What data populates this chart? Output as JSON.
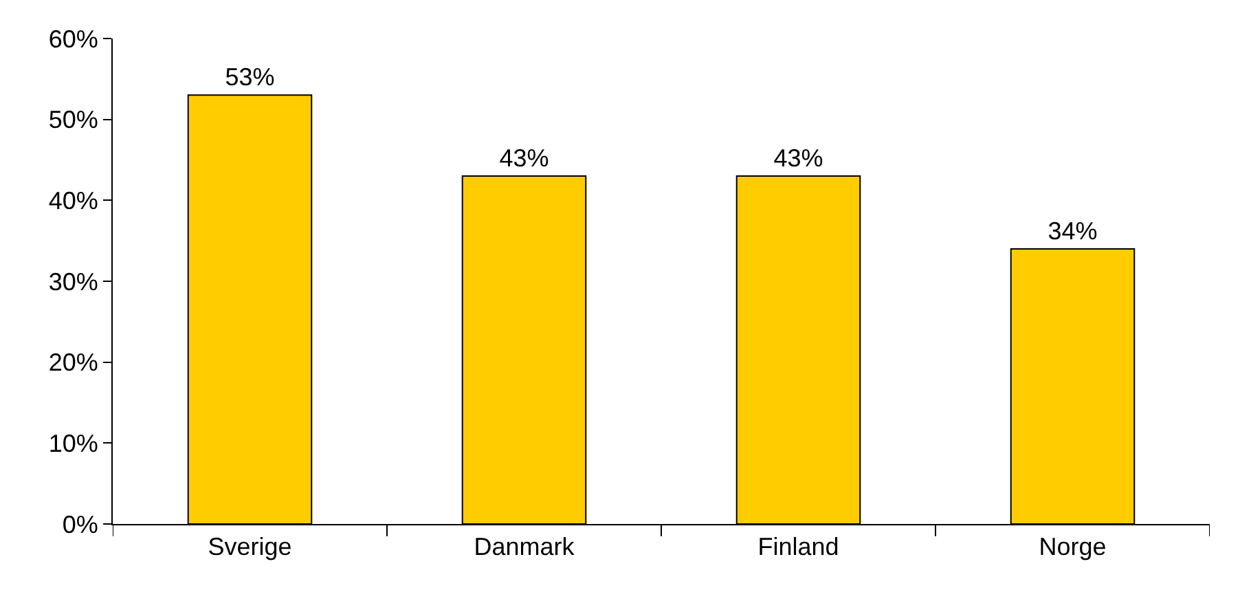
{
  "chart_data": {
    "type": "bar",
    "categories": [
      "Sverige",
      "Danmark",
      "Finland",
      "Norge"
    ],
    "values": [
      53,
      43,
      43,
      34
    ],
    "value_labels": [
      "53%",
      "43%",
      "43%",
      "34%"
    ],
    "color": "#ffcc00",
    "ylim": [
      0,
      60
    ],
    "yticks": [
      {
        "value": 0,
        "label": "0%"
      },
      {
        "value": 10,
        "label": "10%"
      },
      {
        "value": 20,
        "label": "20%"
      },
      {
        "value": 30,
        "label": "30%"
      },
      {
        "value": 40,
        "label": "40%"
      },
      {
        "value": 50,
        "label": "50%"
      },
      {
        "value": 60,
        "label": "60%"
      }
    ],
    "grid": false
  }
}
